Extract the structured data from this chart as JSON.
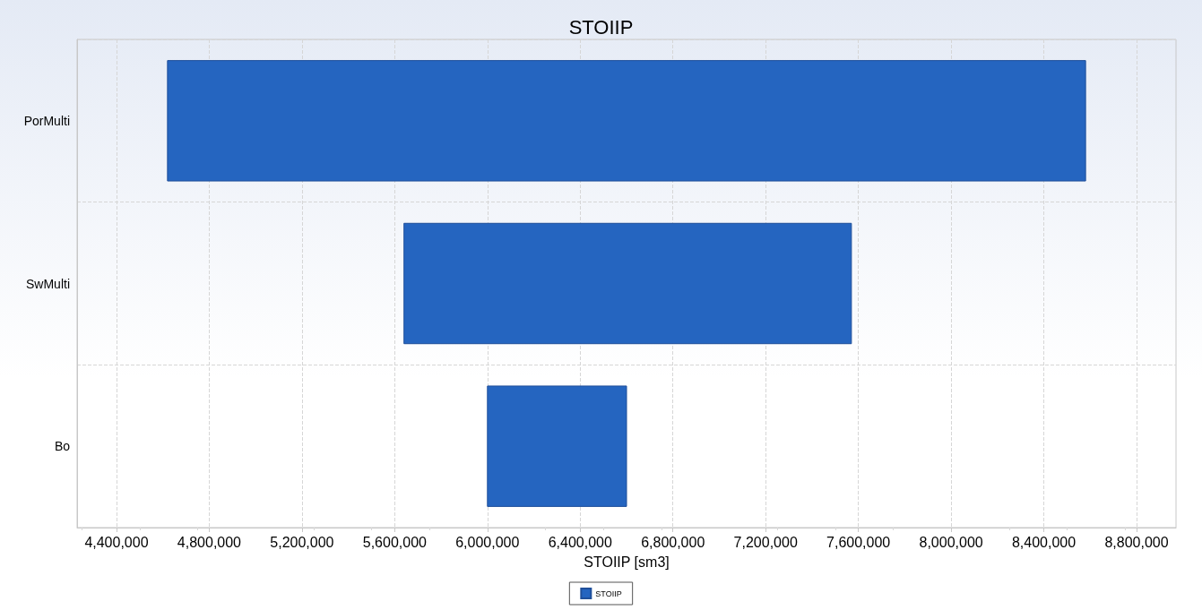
{
  "chart_data": {
    "type": "bar",
    "orientation": "horizontal",
    "title": "STOIIP",
    "xlabel": "STOIIP [sm3]",
    "categories": [
      "PorMulti",
      "SwMulti",
      "Bo"
    ],
    "series": [
      {
        "name": "STOIIP",
        "color": "#2565c0",
        "base": [
          4620000,
          5640000,
          6000000
        ],
        "values": [
          3960000,
          1930000,
          600000
        ]
      }
    ],
    "xlim": [
      4230000,
      8970000
    ],
    "xticks": [
      {
        "value": 4400000,
        "label": "4,400,000"
      },
      {
        "value": 4800000,
        "label": "4,800,000"
      },
      {
        "value": 5200000,
        "label": "5,200,000"
      },
      {
        "value": 5600000,
        "label": "5,600,000"
      },
      {
        "value": 6000000,
        "label": "6,000,000"
      },
      {
        "value": 6400000,
        "label": "6,400,000"
      },
      {
        "value": 6800000,
        "label": "6,800,000"
      },
      {
        "value": 7200000,
        "label": "7,200,000"
      },
      {
        "value": 7600000,
        "label": "7,600,000"
      },
      {
        "value": 8000000,
        "label": "8,000,000"
      },
      {
        "value": 8400000,
        "label": "8,400,000"
      },
      {
        "value": 8800000,
        "label": "8,800,000"
      }
    ],
    "grid": true,
    "legend": "bottom"
  }
}
